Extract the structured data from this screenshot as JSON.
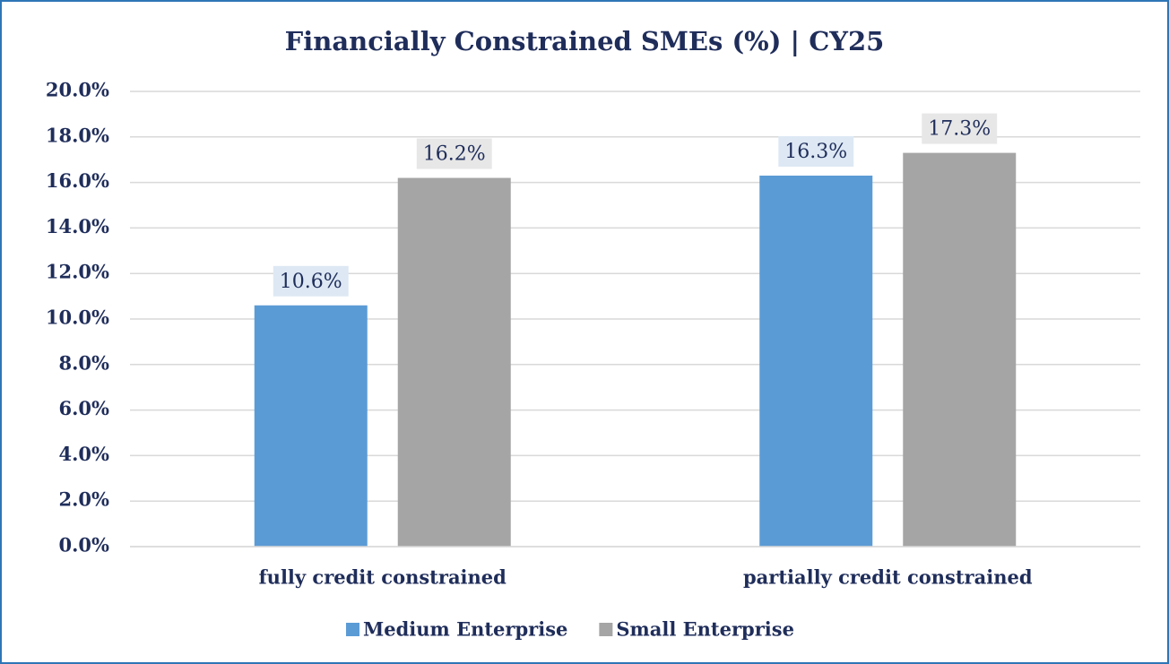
{
  "chart_data": {
    "type": "bar",
    "title": "Financially Constrained SMEs (%) | CY25",
    "categories": [
      "fully credit constrained",
      "partially credit constrained"
    ],
    "series": [
      {
        "name": "Medium Enterprise",
        "color": "#5b9bd5",
        "values": [
          10.6,
          16.3
        ],
        "value_labels": [
          "10.6%",
          "16.3%"
        ]
      },
      {
        "name": "Small Enterprise",
        "color": "#a5a5a5",
        "values": [
          16.2,
          17.3
        ],
        "value_labels": [
          "16.2%",
          "17.3%"
        ]
      }
    ],
    "ylim": [
      0,
      20
    ],
    "yticks": [
      {
        "value": 0,
        "label": "0.0%"
      },
      {
        "value": 2,
        "label": "2.0%"
      },
      {
        "value": 4,
        "label": "4.0%"
      },
      {
        "value": 6,
        "label": "6.0%"
      },
      {
        "value": 8,
        "label": "8.0%"
      },
      {
        "value": 10,
        "label": "10.0%"
      },
      {
        "value": 12,
        "label": "12.0%"
      },
      {
        "value": 14,
        "label": "14.0%"
      },
      {
        "value": 16,
        "label": "16.0%"
      },
      {
        "value": 18,
        "label": "18.0%"
      },
      {
        "value": 20,
        "label": "20.0%"
      }
    ],
    "grid": true,
    "legend": "bottom"
  }
}
